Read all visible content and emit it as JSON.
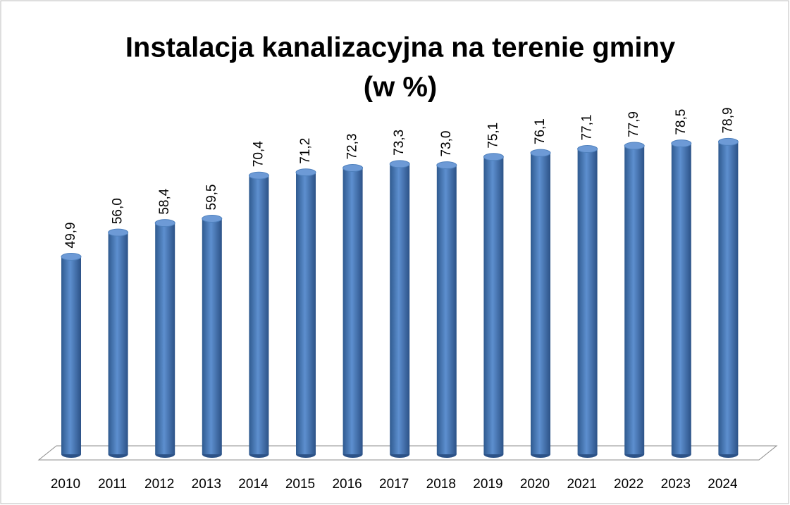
{
  "chart_data": {
    "type": "bar",
    "title": "Instalacja kanalizacyjna na terenie gminy",
    "subtitle": "(w %)",
    "categories": [
      "2010",
      "2011",
      "2012",
      "2013",
      "2014",
      "2015",
      "2016",
      "2017",
      "2018",
      "2019",
      "2020",
      "2021",
      "2022",
      "2023",
      "2024"
    ],
    "values": [
      49.9,
      56.0,
      58.4,
      59.5,
      70.4,
      71.2,
      72.3,
      73.3,
      73.0,
      75.1,
      76.1,
      77.1,
      77.9,
      78.5,
      78.9
    ],
    "value_labels": [
      "49,9",
      "56,0",
      "58,4",
      "59,5",
      "70,4",
      "71,2",
      "72,3",
      "73,3",
      "73,0",
      "75,1",
      "76,1",
      "77,1",
      "77,9",
      "78,5",
      "78,9"
    ],
    "color": "#4f81bd",
    "ylim": [
      0,
      90
    ]
  }
}
